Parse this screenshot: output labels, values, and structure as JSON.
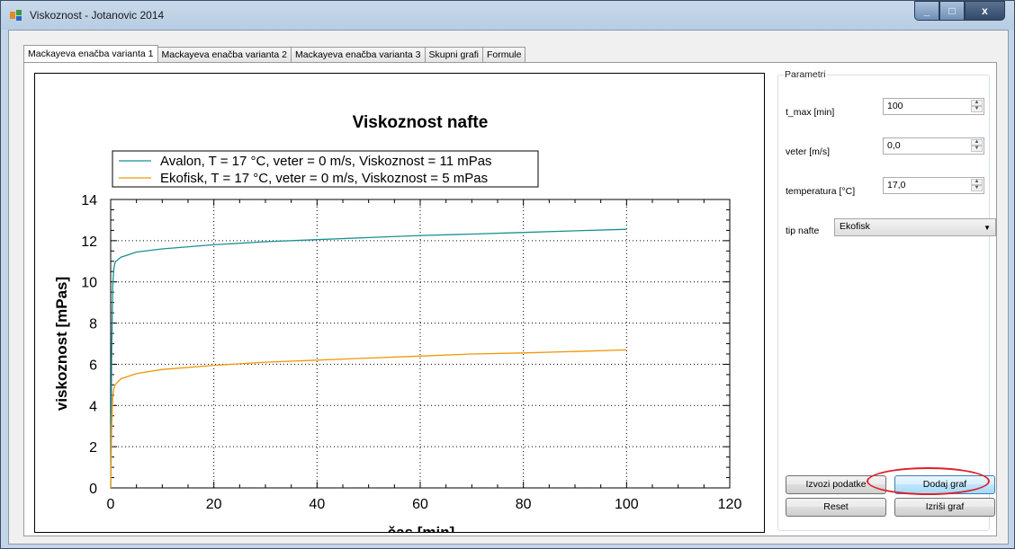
{
  "window": {
    "title": "Viskoznost - Jotanovic 2014",
    "controls": [
      "_",
      "□",
      "x"
    ]
  },
  "tabs": [
    "Mackayeva enačba varianta 1",
    "Mackayeva enačba varianta 2",
    "Mackayeva enačba varianta 3",
    "Skupni grafi",
    "Formule"
  ],
  "active_tab": 0,
  "params": {
    "group_title": "Parametri",
    "t_max_label": "t_max [min]",
    "t_max_value": "100",
    "veter_label": "veter [m/s]",
    "veter_value": "0,0",
    "temperatura_label": "temperatura [°C]",
    "temperatura_value": "17,0",
    "tip_label": "tip nafte",
    "tip_value": "Ekofisk"
  },
  "buttons": {
    "izvozi": "Izvozi podatke",
    "dodaj": "Dodaj graf",
    "reset": "Reset",
    "izrisi": "Izriši graf"
  },
  "colors": {
    "series_avalon": "#1a9090",
    "series_ekofisk": "#f0960a",
    "annotation": "#e0202a"
  },
  "chart_data": {
    "type": "line",
    "title": "Viskoznost nafte",
    "xlabel": "čas [min]",
    "ylabel": "viskoznost [mPas]",
    "xlim": [
      0,
      120
    ],
    "ylim": [
      0,
      14
    ],
    "xticks": [
      0,
      20,
      40,
      60,
      80,
      100,
      120
    ],
    "yticks": [
      0,
      2,
      4,
      6,
      8,
      10,
      12,
      14
    ],
    "grid": "dotted",
    "legend": "top-left",
    "series": [
      {
        "name": "Avalon, T = 17 °C, veter = 0 m/s, Viskoznost = 11 mPas",
        "color": "#1a9090",
        "x": [
          0,
          0.1,
          0.2,
          0.4,
          0.6,
          0.8,
          1,
          2,
          5,
          10,
          20,
          30,
          40,
          50,
          60,
          70,
          80,
          90,
          100
        ],
        "y": [
          0,
          3.5,
          6.5,
          9.8,
          10.6,
          10.9,
          11.0,
          11.2,
          11.45,
          11.6,
          11.8,
          11.95,
          12.05,
          12.15,
          12.25,
          12.32,
          12.4,
          12.48,
          12.55
        ]
      },
      {
        "name": "Ekofisk, T = 17 °C, veter = 0 m/s, Viskoznost = 5 mPas",
        "color": "#f0960a",
        "x": [
          0,
          0.1,
          0.2,
          0.4,
          0.6,
          0.8,
          1,
          2,
          5,
          10,
          20,
          30,
          40,
          50,
          60,
          70,
          80,
          90,
          100
        ],
        "y": [
          0,
          1.5,
          3.0,
          4.4,
          4.8,
          4.95,
          5.05,
          5.3,
          5.55,
          5.75,
          5.95,
          6.1,
          6.2,
          6.3,
          6.4,
          6.5,
          6.55,
          6.62,
          6.7
        ]
      }
    ]
  }
}
